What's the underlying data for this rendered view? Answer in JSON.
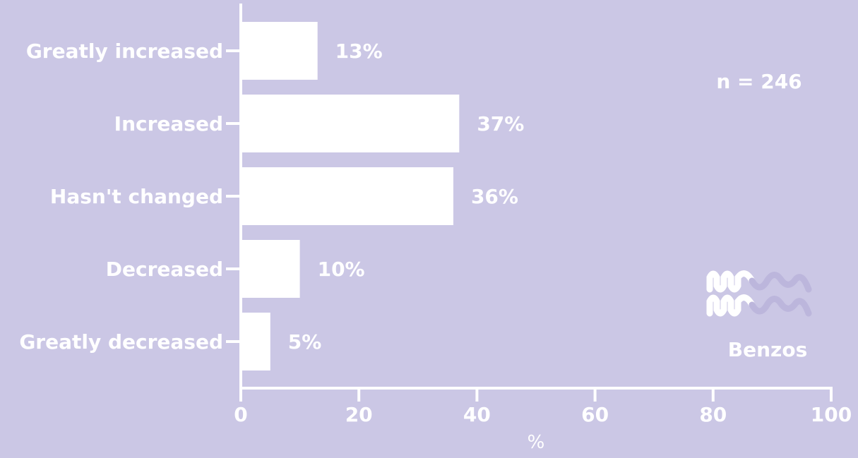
{
  "colors": {
    "background": "#cbc7e5",
    "bar": "#ffffff",
    "text": "#ffffff",
    "logo_faded": "#bcb6dc"
  },
  "chart_data": {
    "type": "bar",
    "orientation": "horizontal",
    "categories": [
      "Greatly increased",
      "Increased",
      "Hasn't changed",
      "Decreased",
      "Greatly decreased"
    ],
    "values": [
      13,
      37,
      36,
      10,
      5
    ],
    "value_labels": [
      "13%",
      "37%",
      "36%",
      "10%",
      "5%"
    ],
    "xlim": [
      0,
      100
    ],
    "xticks": [
      0,
      20,
      40,
      60,
      80,
      100
    ],
    "xtick_labels": [
      "0",
      "20",
      "40",
      "60",
      "80",
      "100"
    ],
    "xlabel": "%",
    "ylabel": "",
    "title": "",
    "grid": false,
    "annotation": "n = 246",
    "logo_label": "Benzos"
  }
}
